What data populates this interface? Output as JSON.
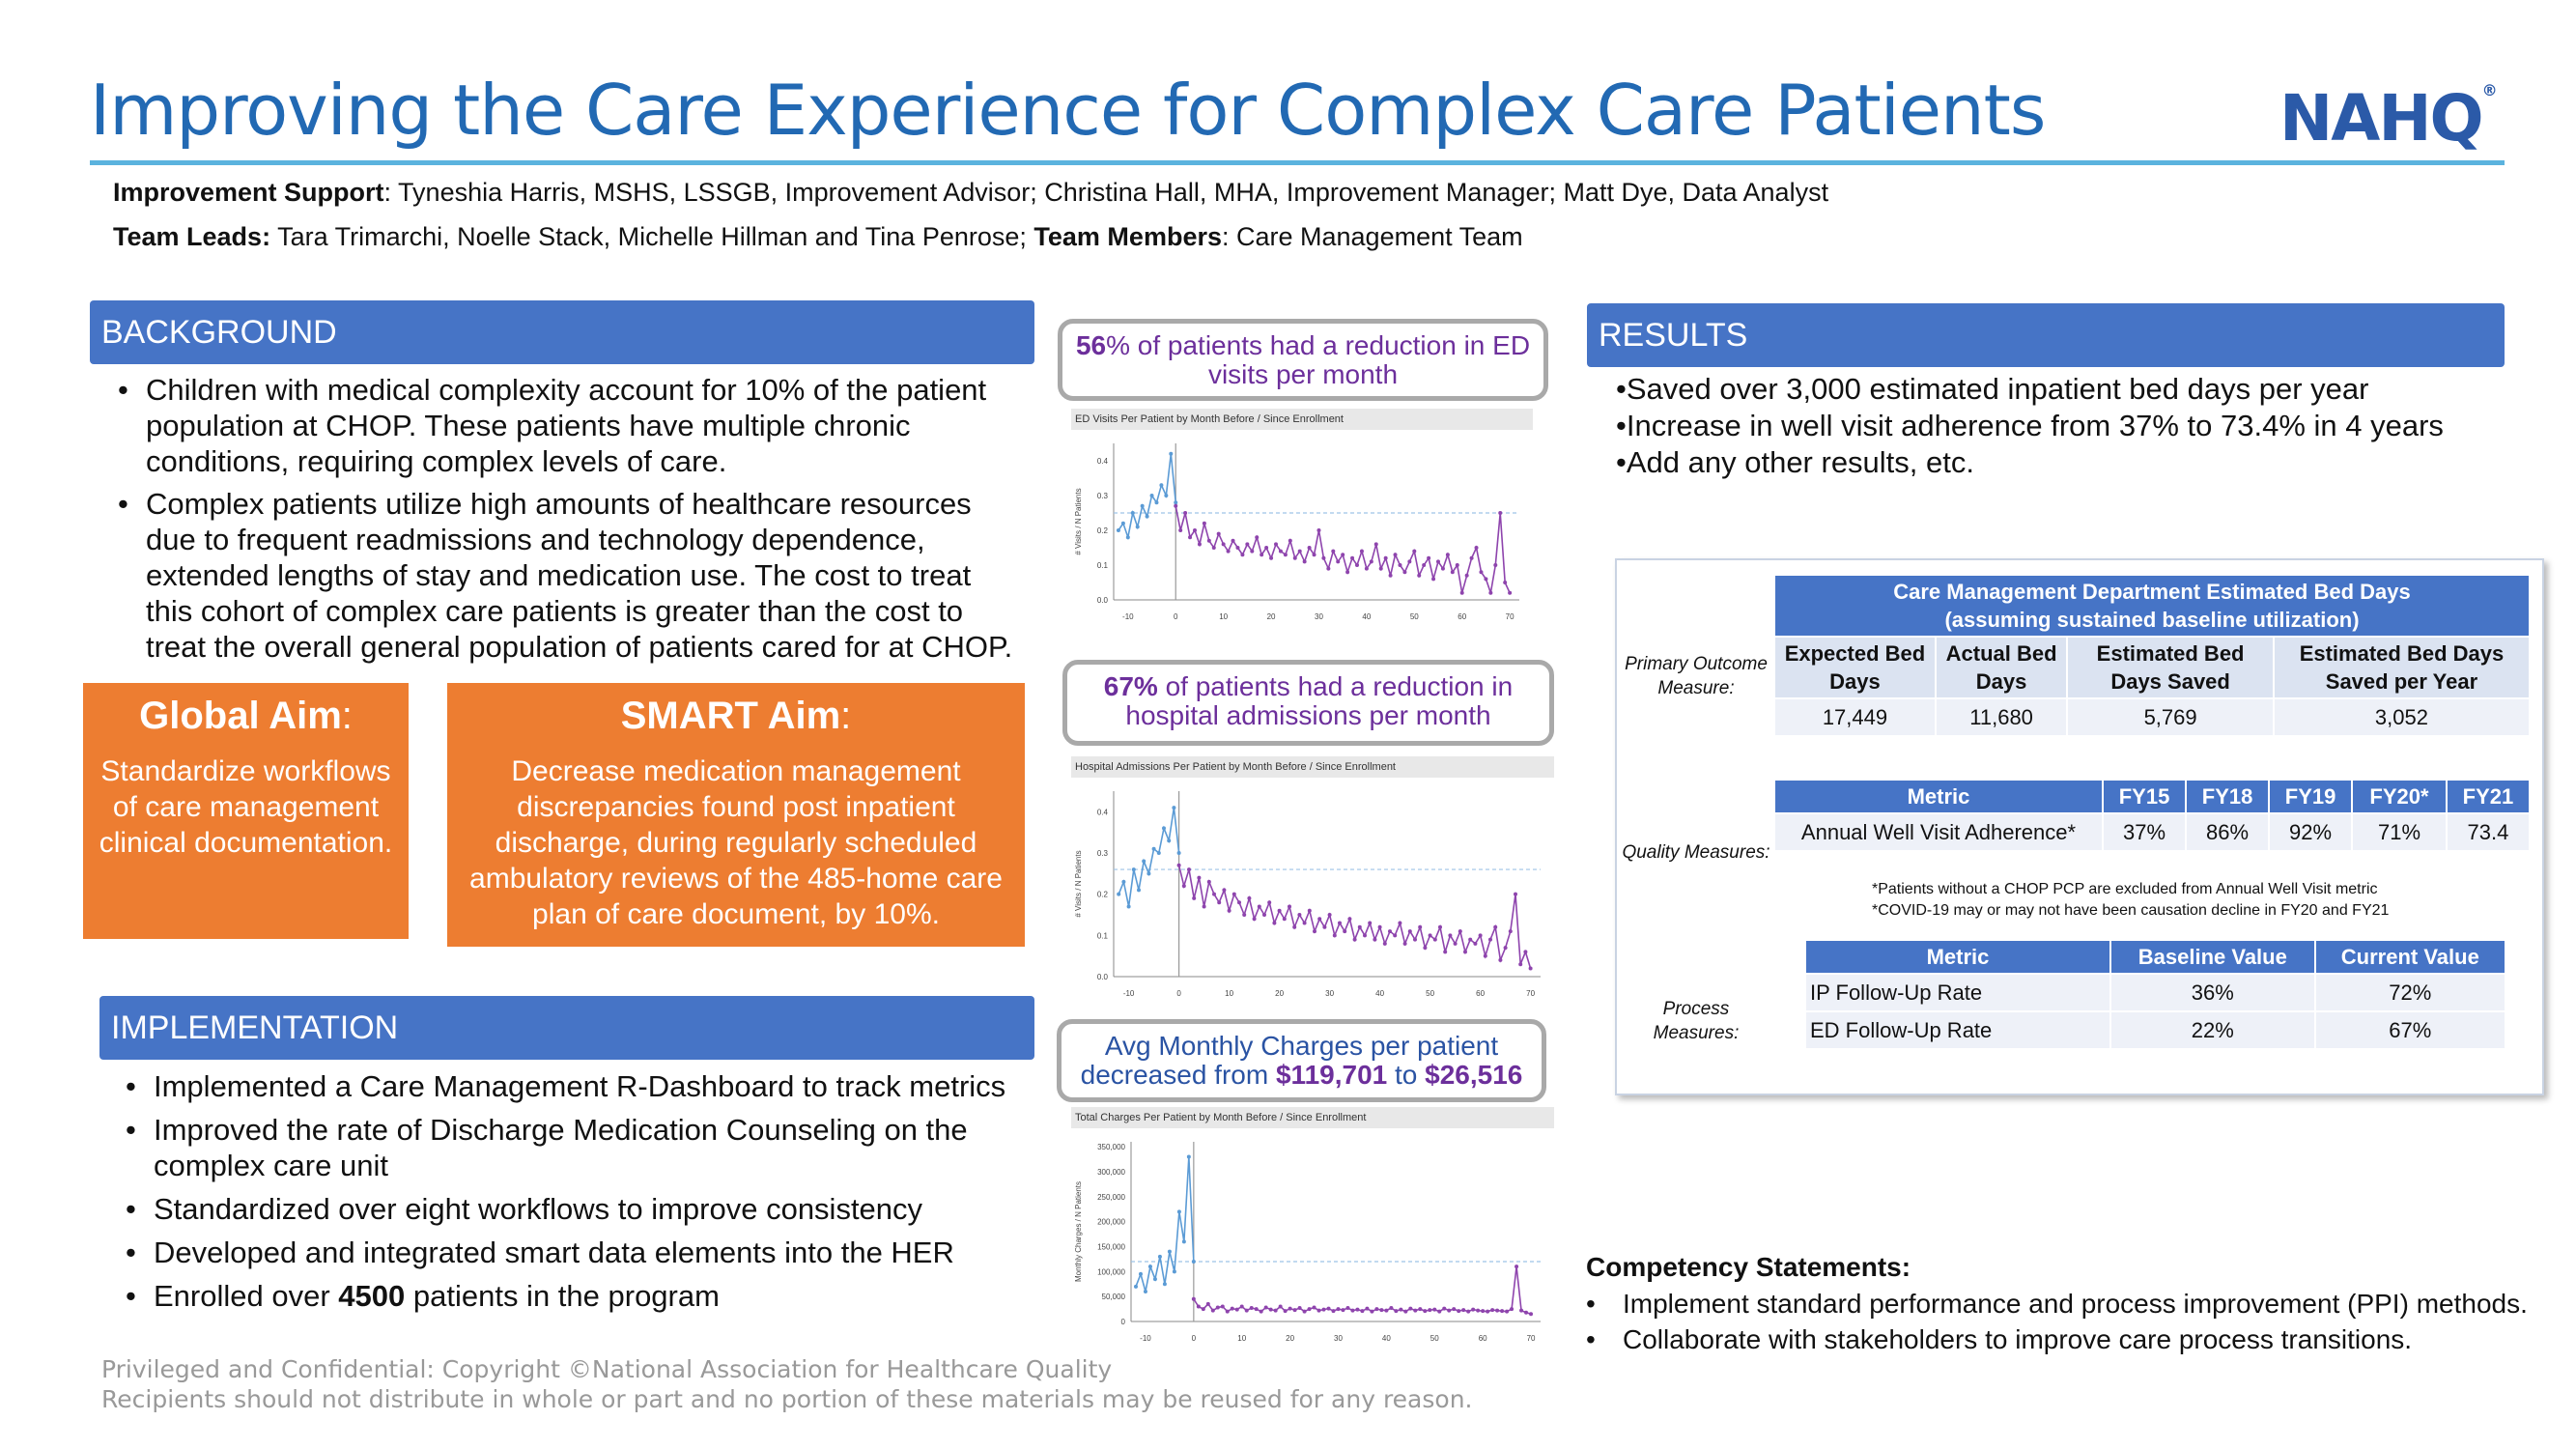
{
  "title": "Improving the Care Experience for Complex Care Patients",
  "logo": {
    "text": "NAHQ",
    "mark": "®"
  },
  "credits": {
    "support_label": "Improvement Support",
    "support_text": ": Tyneshia Harris, MSHS, LSSGB, Improvement Advisor; Christina Hall, MHA, Improvement Manager; Matt Dye, Data Analyst",
    "leads_label": "Team Leads:",
    "leads_text": " Tara Trimarchi, Noelle Stack, Michelle Hillman and Tina Penrose; ",
    "members_label": "Team Members",
    "members_text": ": Care Management Team"
  },
  "background": {
    "header": "BACKGROUND",
    "bullets": [
      "Children with medical complexity account for 10% of the patient population at CHOP. These patients have multiple chronic conditions, requiring complex levels of care.",
      "Complex patients utilize high amounts of healthcare resources due to frequent readmissions and technology dependence, extended lengths of stay and medication use. The cost to treat this cohort of complex care patients is greater than the cost to treat the overall general population of patients cared for at CHOP."
    ]
  },
  "global_aim": {
    "title": "Global Aim",
    "colon": ":",
    "body": "Standardize workflows of care management clinical documentation."
  },
  "smart_aim": {
    "title": "SMART Aim",
    "colon": ":",
    "body": "Decrease medication management discrepancies found post inpatient discharge, during regularly scheduled ambulatory reviews of the 485-home care plan of care document, by 10%."
  },
  "implementation": {
    "header": "IMPLEMENTATION",
    "bullets": [
      "Implemented a Care Management R-Dashboard to track metrics",
      "Improved the rate of Discharge Medication Counseling on the complex care unit",
      "Standardized over eight workflows to improve consistency",
      "Developed and integrated smart data elements into the HER"
    ],
    "last_prefix": "Enrolled over ",
    "last_bold": "4500",
    "last_suffix": " patients in the program"
  },
  "callouts": {
    "ed": {
      "bold": "56",
      "text": "% of patients had a reduction in ED visits per month"
    },
    "admissions": {
      "bold": "67%",
      "text": " of patients had a reduction in hospital admissions per month"
    },
    "charges": {
      "line1": "Avg Monthly Charges per patient",
      "line2_prefix": "decreased from ",
      "from": "$119,701",
      "mid": " to ",
      "to": "$26,516"
    }
  },
  "chart_data": [
    {
      "type": "line",
      "title": "ED Visits Per Patient by Month Before / Since Enrollment",
      "ylabel": "# Visits / N Patients",
      "xlim": [
        -10,
        70
      ],
      "ylim": [
        0,
        0.45
      ],
      "xticks": [
        "-10",
        "0",
        "10",
        "20",
        "30",
        "40",
        "50",
        "60",
        "70"
      ],
      "yticks": [
        "0.0",
        "0.1",
        "0.2",
        "0.3",
        "0.4"
      ],
      "baseline": 0.25,
      "before": {
        "color": "#5b9bd5",
        "x": [
          -12,
          -11,
          -10,
          -9,
          -8,
          -7,
          -6,
          -5,
          -4,
          -3,
          -2,
          -1,
          0
        ],
        "y": [
          0.2,
          0.22,
          0.18,
          0.25,
          0.21,
          0.27,
          0.24,
          0.3,
          0.28,
          0.33,
          0.3,
          0.42,
          0.28
        ]
      },
      "after": {
        "color": "#8e44ad",
        "y": [
          0.27,
          0.2,
          0.25,
          0.18,
          0.2,
          0.16,
          0.22,
          0.17,
          0.15,
          0.19,
          0.16,
          0.14,
          0.17,
          0.15,
          0.13,
          0.16,
          0.14,
          0.18,
          0.13,
          0.15,
          0.12,
          0.16,
          0.14,
          0.13,
          0.17,
          0.12,
          0.14,
          0.11,
          0.15,
          0.13,
          0.2,
          0.12,
          0.09,
          0.14,
          0.11,
          0.13,
          0.08,
          0.12,
          0.1,
          0.14,
          0.09,
          0.11,
          0.16,
          0.09,
          0.12,
          0.07,
          0.13,
          0.1,
          0.08,
          0.11,
          0.14,
          0.07,
          0.1,
          0.12,
          0.06,
          0.11,
          0.09,
          0.13,
          0.08,
          0.1,
          0.02,
          0.07,
          0.12,
          0.15,
          0.08,
          0.06,
          0.02,
          0.1,
          0.25,
          0.05,
          0.02
        ]
      }
    },
    {
      "type": "line",
      "title": "Hospital Admissions Per Patient by Month Before / Since Enrollment",
      "ylabel": "# Visits / N Patients",
      "xlim": [
        -10,
        70
      ],
      "ylim": [
        0,
        0.45
      ],
      "xticks": [
        "-10",
        "0",
        "10",
        "20",
        "30",
        "40",
        "50",
        "60",
        "70"
      ],
      "yticks": [
        "0.0",
        "0.1",
        "0.2",
        "0.3",
        "0.4"
      ],
      "baseline": 0.26,
      "before": {
        "color": "#5b9bd5",
        "x": [
          -12,
          -11,
          -10,
          -9,
          -8,
          -7,
          -6,
          -5,
          -4,
          -3,
          -2,
          -1,
          0
        ],
        "y": [
          0.2,
          0.23,
          0.17,
          0.26,
          0.21,
          0.28,
          0.25,
          0.31,
          0.3,
          0.36,
          0.33,
          0.41,
          0.3
        ]
      },
      "after": {
        "color": "#8e44ad",
        "y": [
          0.27,
          0.22,
          0.26,
          0.19,
          0.24,
          0.17,
          0.23,
          0.2,
          0.18,
          0.21,
          0.16,
          0.2,
          0.18,
          0.15,
          0.19,
          0.14,
          0.17,
          0.15,
          0.18,
          0.13,
          0.16,
          0.14,
          0.17,
          0.12,
          0.15,
          0.13,
          0.16,
          0.11,
          0.14,
          0.12,
          0.15,
          0.1,
          0.13,
          0.11,
          0.14,
          0.09,
          0.12,
          0.1,
          0.13,
          0.09,
          0.12,
          0.08,
          0.11,
          0.1,
          0.13,
          0.08,
          0.11,
          0.09,
          0.12,
          0.07,
          0.1,
          0.09,
          0.12,
          0.06,
          0.1,
          0.08,
          0.11,
          0.06,
          0.09,
          0.08,
          0.1,
          0.05,
          0.09,
          0.12,
          0.04,
          0.07,
          0.11,
          0.2,
          0.03,
          0.06,
          0.02
        ]
      }
    },
    {
      "type": "line",
      "title": "Total Charges Per Patient by Month Before / Since Enrollment",
      "ylabel": "Monthly Charges / N Patients",
      "xlim": [
        -10,
        70
      ],
      "ylim": [
        0,
        360000
      ],
      "xticks": [
        "-10",
        "0",
        "10",
        "20",
        "30",
        "40",
        "50",
        "60",
        "70"
      ],
      "yticks": [
        "0",
        "50,000",
        "100,000",
        "150,000",
        "200,000",
        "250,000",
        "300,000",
        "350,000"
      ],
      "baseline": 120000,
      "before": {
        "color": "#5b9bd5",
        "x": [
          -12,
          -11,
          -10,
          -9,
          -8,
          -7,
          -6,
          -5,
          -4,
          -3,
          -2,
          -1,
          0
        ],
        "y": [
          70000,
          95000,
          60000,
          110000,
          85000,
          130000,
          75000,
          140000,
          100000,
          220000,
          160000,
          330000,
          120000
        ]
      },
      "after": {
        "color": "#8e44ad",
        "y": [
          45000,
          30000,
          25000,
          35000,
          22000,
          28000,
          30000,
          20000,
          26000,
          24000,
          30000,
          22000,
          27000,
          25000,
          20000,
          28000,
          24000,
          22000,
          30000,
          21000,
          26000,
          23000,
          27000,
          20000,
          25000,
          28000,
          22000,
          24000,
          26000,
          21000,
          25000,
          23000,
          27000,
          22000,
          24000,
          21000,
          26000,
          20000,
          25000,
          23000,
          22000,
          27000,
          21000,
          24000,
          20000,
          26000,
          22000,
          25000,
          21000,
          23000,
          24000,
          20000,
          26000,
          22000,
          25000,
          21000,
          23000,
          20000,
          24000,
          22000,
          21000,
          20000,
          23000,
          22000,
          21000,
          20000,
          25000,
          110000,
          22000,
          18000,
          15000
        ]
      }
    }
  ],
  "results": {
    "header": "RESULTS",
    "bullets": [
      "•Saved over 3,000 estimated inpatient bed days per year",
      "•Increase in well visit adherence from 37% to 73.4% in 4 years",
      "•Add any other results, etc."
    ]
  },
  "bed_days_table": {
    "row_label": "Primary Outcome Measure:",
    "title_line1": "Care Management Department Estimated Bed Days",
    "title_line2": "(assuming sustained baseline utilization)",
    "headers": [
      "Expected Bed Days",
      "Actual Bed Days",
      "Estimated Bed Days Saved",
      "Estimated Bed Days Saved per Year"
    ],
    "values": [
      "17,449",
      "11,680",
      "5,769",
      "3,052"
    ]
  },
  "quality_table": {
    "row_label": "Quality Measures:",
    "headers": [
      "Metric",
      "FY15",
      "FY18",
      "FY19",
      "FY20*",
      "FY21"
    ],
    "row": [
      "Annual Well Visit Adherence*",
      "37%",
      "86%",
      "92%",
      "71%",
      "73.4"
    ],
    "notes": [
      "*Patients without a CHOP PCP are excluded from Annual Well Visit metric",
      "*COVID-19 may or may not have been causation decline in FY20 and FY21"
    ]
  },
  "process_table": {
    "row_label": "Process Measures:",
    "headers": [
      "Metric",
      "Baseline Value",
      "Current Value"
    ],
    "rows": [
      [
        "IP Follow-Up Rate",
        "36%",
        "72%"
      ],
      [
        "ED Follow-Up Rate",
        "22%",
        "67%"
      ]
    ]
  },
  "competency": {
    "title": "Competency Statements:",
    "items": [
      "Implement standard performance and process improvement (PPI) methods.",
      "Collaborate with stakeholders to improve care process transitions."
    ]
  },
  "confidential": {
    "line1": "Privileged and Confidential: Copyright ©National Association for Healthcare Quality",
    "line2": "Recipients should not distribute in whole or part and no portion of these materials may be reused for any reason."
  },
  "colors": {
    "accent_blue": "#2269b3",
    "header_bar": "#4674c6",
    "aim_orange": "#ed7d31",
    "callout_purple": "#6c2f9b"
  }
}
